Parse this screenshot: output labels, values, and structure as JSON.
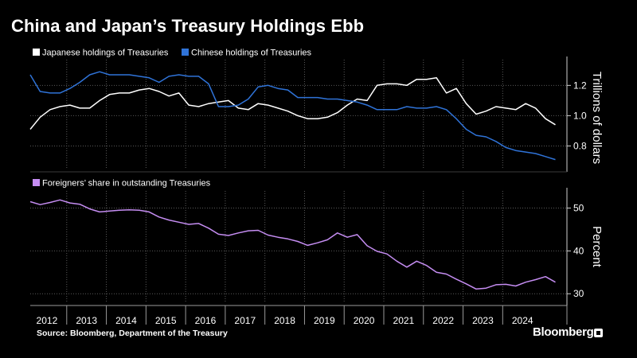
{
  "title": "China and Japan’s Treasury Holdings Ebb",
  "source": "Source: Bloomberg, Department of the Treasury",
  "brand": "Bloomberg",
  "chart_data": [
    {
      "type": "line",
      "title": "",
      "ylabel": "Trillions of dollars",
      "ylim": [
        0.65,
        1.37
      ],
      "yticks": [
        0.8,
        1.0,
        1.2
      ],
      "ytick_labels": [
        "0.8",
        "1.0",
        "1.2"
      ],
      "grid": true,
      "legend_position": "top-left",
      "x_range": [
        2011.58,
        2024.92
      ],
      "x": [
        2011.58,
        2011.83,
        2012.08,
        2012.33,
        2012.58,
        2012.83,
        2013.08,
        2013.33,
        2013.58,
        2013.83,
        2014.08,
        2014.33,
        2014.58,
        2014.83,
        2015.08,
        2015.33,
        2015.58,
        2015.83,
        2016.08,
        2016.33,
        2016.58,
        2016.83,
        2017.08,
        2017.33,
        2017.58,
        2017.83,
        2018.08,
        2018.33,
        2018.58,
        2018.83,
        2019.08,
        2019.33,
        2019.58,
        2019.83,
        2020.08,
        2020.33,
        2020.58,
        2020.83,
        2021.08,
        2021.33,
        2021.58,
        2021.83,
        2022.08,
        2022.33,
        2022.58,
        2022.83,
        2023.08,
        2023.33,
        2023.58,
        2023.83,
        2024.08,
        2024.33,
        2024.58,
        2024.83
      ],
      "series": [
        {
          "name": "Japanese holdings of Treasuries",
          "color": "#ffffff",
          "values": [
            0.91,
            0.99,
            1.04,
            1.06,
            1.07,
            1.05,
            1.05,
            1.1,
            1.14,
            1.15,
            1.15,
            1.17,
            1.18,
            1.16,
            1.13,
            1.15,
            1.07,
            1.06,
            1.08,
            1.09,
            1.1,
            1.05,
            1.04,
            1.08,
            1.07,
            1.05,
            1.03,
            1.0,
            0.98,
            0.98,
            0.99,
            1.02,
            1.07,
            1.11,
            1.1,
            1.2,
            1.21,
            1.21,
            1.2,
            1.24,
            1.24,
            1.25,
            1.15,
            1.18,
            1.08,
            1.01,
            1.03,
            1.06,
            1.05,
            1.04,
            1.08,
            1.05,
            0.98,
            0.94
          ]
        },
        {
          "name": "Chinese holdings of Treasuries",
          "color": "#2f73d8",
          "values": [
            1.27,
            1.16,
            1.15,
            1.15,
            1.18,
            1.22,
            1.27,
            1.29,
            1.27,
            1.27,
            1.27,
            1.26,
            1.25,
            1.22,
            1.26,
            1.27,
            1.26,
            1.26,
            1.21,
            1.06,
            1.06,
            1.07,
            1.11,
            1.19,
            1.2,
            1.18,
            1.17,
            1.12,
            1.12,
            1.12,
            1.11,
            1.11,
            1.1,
            1.09,
            1.07,
            1.04,
            1.04,
            1.04,
            1.06,
            1.05,
            1.05,
            1.06,
            1.04,
            0.98,
            0.91,
            0.87,
            0.86,
            0.83,
            0.79,
            0.77,
            0.76,
            0.75,
            0.73,
            0.71
          ]
        }
      ]
    },
    {
      "type": "line",
      "title": "",
      "ylabel": "Percent",
      "ylim": [
        28,
        54
      ],
      "yticks": [
        30,
        40,
        50
      ],
      "ytick_labels": [
        "30",
        "40",
        "50"
      ],
      "grid": true,
      "legend_position": "top-left",
      "x_range": [
        2011.58,
        2024.92
      ],
      "x": [
        2011.58,
        2011.83,
        2012.08,
        2012.33,
        2012.58,
        2012.83,
        2013.08,
        2013.33,
        2013.58,
        2013.83,
        2014.08,
        2014.33,
        2014.58,
        2014.83,
        2015.08,
        2015.33,
        2015.58,
        2015.83,
        2016.08,
        2016.33,
        2016.58,
        2016.83,
        2017.08,
        2017.33,
        2017.58,
        2017.83,
        2018.08,
        2018.33,
        2018.58,
        2018.83,
        2019.08,
        2019.33,
        2019.58,
        2019.83,
        2020.08,
        2020.33,
        2020.58,
        2020.83,
        2021.08,
        2021.33,
        2021.58,
        2021.83,
        2022.08,
        2022.33,
        2022.58,
        2022.83,
        2023.08,
        2023.33,
        2023.58,
        2023.83,
        2024.08,
        2024.33,
        2024.58,
        2024.83
      ],
      "series": [
        {
          "name": "Foreigners’ share in outstanding Treasuries",
          "color": "#c58df2",
          "values": [
            51.5,
            50.8,
            51.3,
            51.9,
            51.2,
            50.9,
            49.8,
            49.1,
            49.3,
            49.5,
            49.6,
            49.5,
            49.1,
            47.9,
            47.2,
            46.7,
            46.2,
            46.4,
            45.3,
            43.9,
            43.6,
            44.2,
            44.7,
            44.8,
            43.7,
            43.2,
            42.8,
            42.2,
            41.3,
            41.9,
            42.6,
            44.2,
            43.2,
            43.8,
            41.2,
            39.9,
            39.3,
            37.6,
            36.2,
            37.6,
            36.6,
            35.0,
            34.6,
            33.4,
            32.3,
            31.1,
            31.3,
            32.1,
            32.2,
            31.8,
            32.7,
            33.3,
            34.0,
            32.7
          ]
        }
      ]
    }
  ],
  "x_axis": {
    "labels": [
      "2012",
      "2013",
      "2014",
      "2015",
      "2016",
      "2017",
      "2018",
      "2019",
      "2020",
      "2021",
      "2022",
      "2023",
      "2024"
    ],
    "label_positions": [
      2012.0,
      2013.0,
      2014.0,
      2015.0,
      2016.0,
      2017.0,
      2018.0,
      2019.0,
      2020.0,
      2021.0,
      2022.0,
      2023.0,
      2024.0
    ]
  }
}
